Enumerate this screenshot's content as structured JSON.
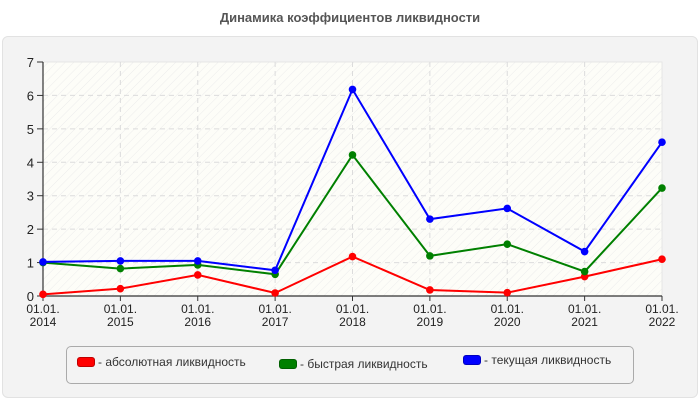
{
  "chart_data": {
    "type": "line",
    "title": "Динамика коэффициентов ликвидности",
    "xlabel": "",
    "ylabel": "",
    "categories": [
      "01.01.2014",
      "01.01.2015",
      "01.01.2016",
      "01.01.2017",
      "01.01.2018",
      "01.01.2019",
      "01.01.2020",
      "01.01.2021",
      "01.01.2022"
    ],
    "x_tick_labels": [
      [
        "01.01.",
        "2014"
      ],
      [
        "01.01.",
        "2015"
      ],
      [
        "01.01.",
        "2016"
      ],
      [
        "01.01.",
        "2017"
      ],
      [
        "01.01.",
        "2018"
      ],
      [
        "01.01.",
        "2019"
      ],
      [
        "01.01.",
        "2020"
      ],
      [
        "01.01.",
        "2021"
      ],
      [
        "01.01.",
        "2022"
      ]
    ],
    "ylim": [
      0,
      7
    ],
    "yticks": [
      0,
      1,
      2,
      3,
      4,
      5,
      6,
      7
    ],
    "grid": true,
    "legend_position": "bottom",
    "series": [
      {
        "name": "- абсолютная ликвидность",
        "color": "#ff0000",
        "values": [
          0.05,
          0.22,
          0.63,
          0.09,
          1.18,
          0.18,
          0.1,
          0.58,
          1.1
        ]
      },
      {
        "name": "- быстрая ликвидность",
        "color": "#008000",
        "values": [
          1.0,
          0.82,
          0.93,
          0.65,
          4.22,
          1.2,
          1.55,
          0.73,
          3.23
        ]
      },
      {
        "name": "- текущая ликвидность",
        "color": "#0000ff",
        "values": [
          1.02,
          1.05,
          1.05,
          0.77,
          6.18,
          2.3,
          2.62,
          1.33,
          4.6
        ]
      }
    ]
  }
}
